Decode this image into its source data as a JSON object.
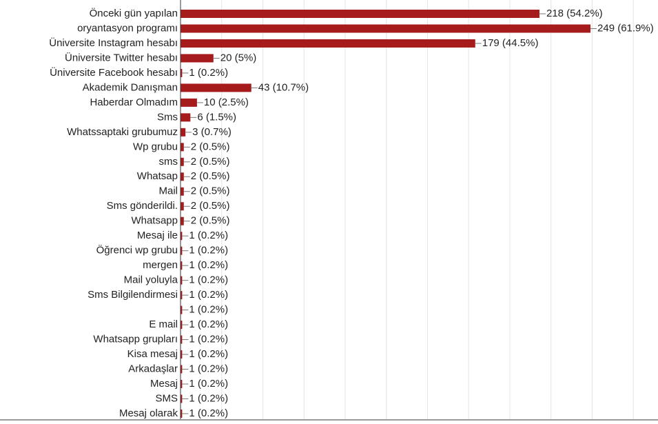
{
  "chart_data": {
    "type": "barh",
    "categories": [
      "Önceki gün yapılan",
      "oryantasyon programı",
      "Üniversite Instagram hesabı",
      "Üniversite Twitter hesabı",
      "Üniversite Facebook hesabı",
      "Akademik Danışman",
      "Haberdar Olmadım",
      "Sms",
      "Whatssaptaki grubumuz",
      "Wp grubu",
      "sms",
      "Whatsap",
      "Mail",
      "Sms gönderildi.",
      "Whatsapp",
      "Mesaj ile",
      "Öğrenci wp grubu",
      "mergen",
      "Mail yoluyla",
      "Sms Bilgilendirmesi",
      null,
      "E mail",
      "Whatsapp grupları",
      "Kisa mesaj",
      "Arkadaşlar",
      "Mesaj",
      "SMS",
      "Mesaj olarak"
    ],
    "values": [
      218,
      249,
      179,
      20,
      1,
      43,
      10,
      6,
      3,
      2,
      2,
      2,
      2,
      2,
      2,
      1,
      1,
      1,
      1,
      1,
      1,
      1,
      1,
      1,
      1,
      1,
      1,
      1
    ],
    "value_labels": [
      "218 (54.2%)",
      "249 (61.9%)",
      "179 (44.5%)",
      "20 (5%)",
      "1 (0.2%)",
      "43 (10.7%)",
      "10 (2.5%)",
      "6 (1.5%)",
      "3 (0.7%)",
      "2 (0.5%)",
      "2 (0.5%)",
      "2 (0.5%)",
      "2 (0.5%)",
      "2 (0.5%)",
      "2 (0.5%)",
      "1 (0.2%)",
      "1 (0.2%)",
      "1 (0.2%)",
      "1 (0.2%)",
      "1 (0.2%)",
      "1 (0.2%)",
      "1 (0.2%)",
      "1 (0.2%)",
      "1 (0.2%)",
      "1 (0.2%)",
      "1 (0.2%)",
      "1 (0.2%)",
      "1 (0.2%)"
    ],
    "color": "#a61b1b",
    "xlim": [
      0,
      290
    ],
    "xticks": [
      0,
      25,
      50,
      75,
      100,
      125,
      150,
      175,
      200,
      225,
      250,
      275
    ],
    "grid": true
  }
}
